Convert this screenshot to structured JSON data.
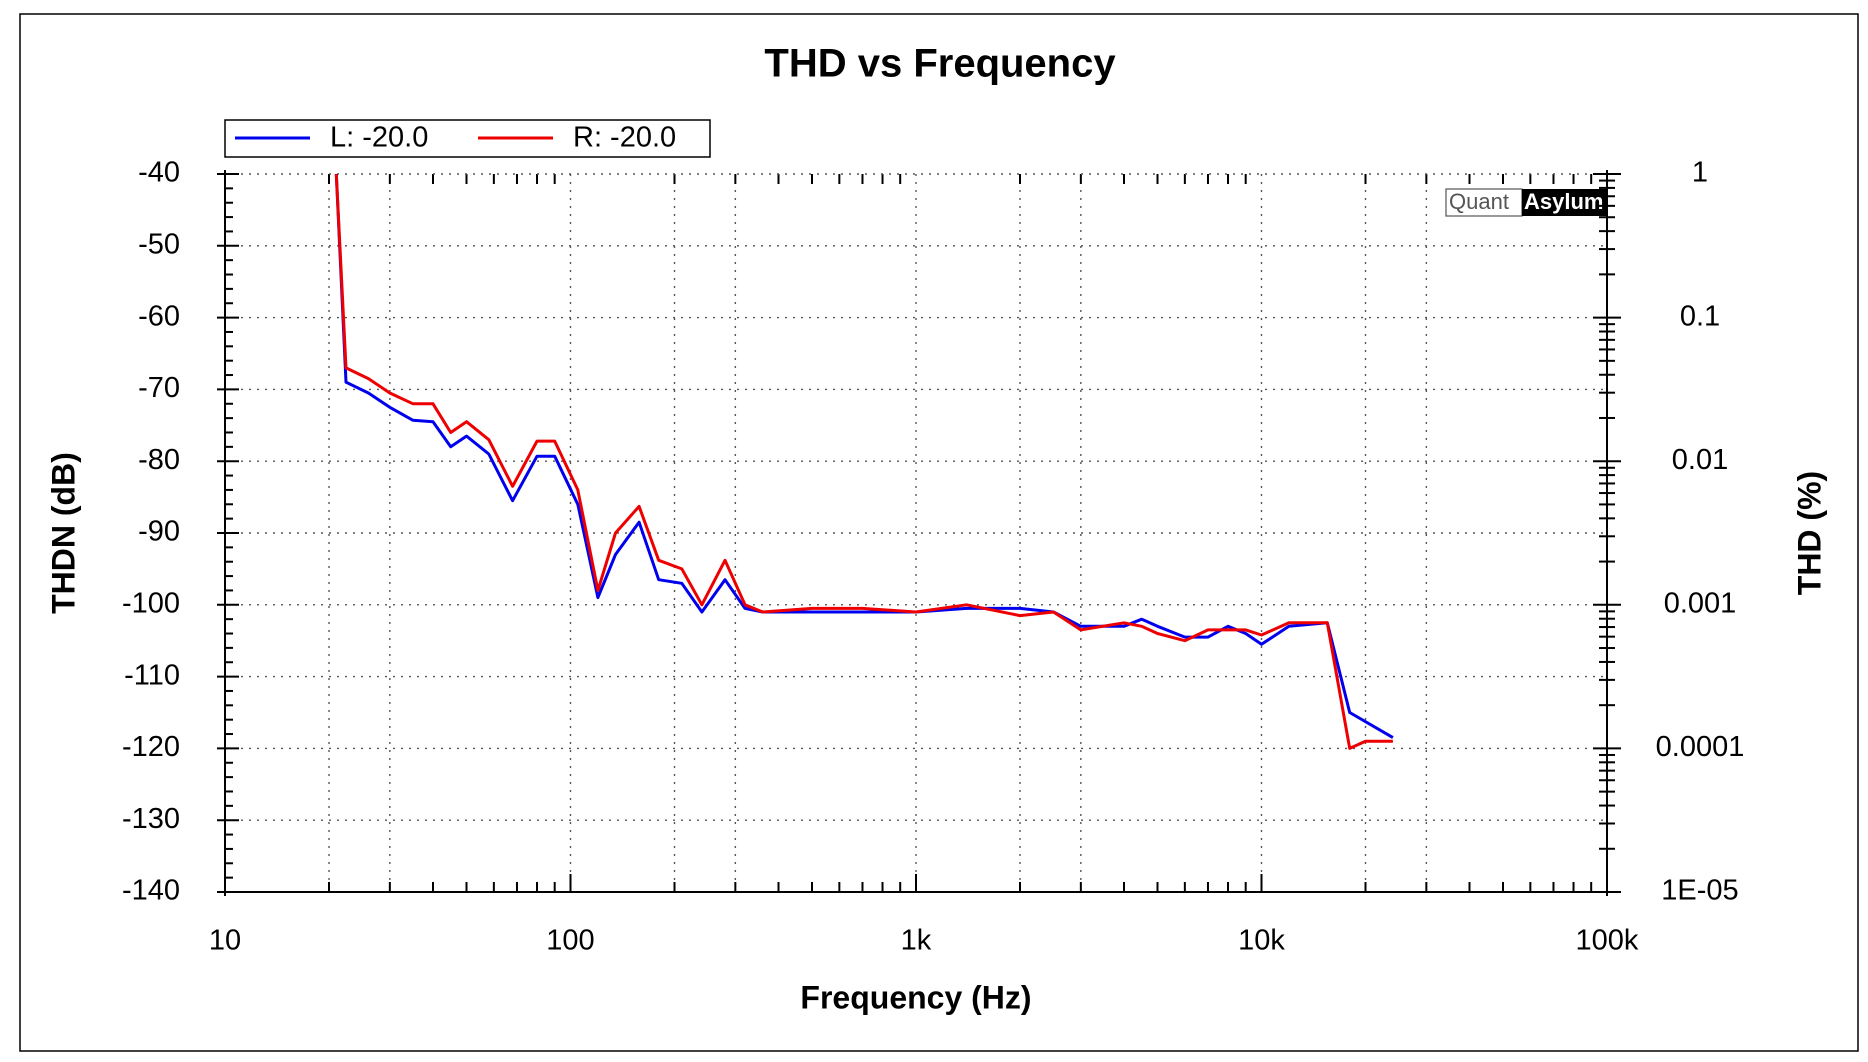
{
  "chart_data": {
    "type": "line",
    "title": "THD vs Frequency",
    "xlabel": "Frequency (Hz)",
    "ylabel": "THDN (dB)",
    "y2label": "THD (%)",
    "watermark": {
      "left": "Quant",
      "right": "Asylum"
    },
    "xscale": "log",
    "xlim": [
      10,
      100000
    ],
    "xticks": [
      10,
      100,
      {
        "value": 1000,
        "label": "1k"
      },
      {
        "value": 10000,
        "label": "10k"
      },
      {
        "value": 100000,
        "label": "100k"
      }
    ],
    "ylim": [
      -140,
      -40
    ],
    "yticks": [
      -40,
      -50,
      -60,
      -70,
      -80,
      -90,
      -100,
      -110,
      -120,
      -130,
      -140
    ],
    "y2scale": "log",
    "y2lim": [
      1e-05,
      1
    ],
    "y2ticks": [
      1,
      0.1,
      0.01,
      0.001,
      0.0001,
      {
        "value": 1e-05,
        "label": "1E-05"
      }
    ],
    "grid": true,
    "series": [
      {
        "name": "L: -20.0",
        "color": "#0000ee",
        "x": [
          21,
          22.4,
          26,
          30,
          35,
          40,
          45,
          50,
          58,
          68,
          80,
          90,
          105,
          120,
          135,
          158,
          180,
          210,
          240,
          280,
          320,
          360,
          500,
          700,
          1000,
          1400,
          2000,
          2500,
          3000,
          4000,
          4500,
          5000,
          6000,
          7000,
          8000,
          9000,
          10000,
          12000,
          15500,
          18000,
          24000
        ],
        "values": [
          -40,
          -69,
          -70.5,
          -72.5,
          -74.3,
          -74.5,
          -78,
          -76.5,
          -79,
          -85.5,
          -79.3,
          -79.3,
          -86,
          -99,
          -93,
          -88.5,
          -96.5,
          -97,
          -101,
          -96.5,
          -100.5,
          -101,
          -101,
          -101,
          -101,
          -100.5,
          -100.5,
          -101,
          -103,
          -103,
          -102,
          -103,
          -104.5,
          -104.5,
          -103,
          -104,
          -105.5,
          -103,
          -102.5,
          -115,
          -118.5
        ]
      },
      {
        "name": "R: -20.0",
        "color": "#ee0000",
        "x": [
          21,
          22.4,
          26,
          30,
          35,
          40,
          45,
          50,
          58,
          68,
          80,
          90,
          105,
          120,
          135,
          158,
          180,
          210,
          240,
          280,
          320,
          360,
          500,
          700,
          1000,
          1400,
          2000,
          2500,
          3000,
          4000,
          4500,
          5000,
          6000,
          7000,
          8000,
          9000,
          10000,
          12000,
          15500,
          18000,
          20000,
          24000
        ],
        "values": [
          -40,
          -67,
          -68.5,
          -70.5,
          -72,
          -72,
          -76,
          -74.5,
          -77,
          -83.5,
          -77.2,
          -77.2,
          -84,
          -98,
          -90,
          -86.3,
          -93.8,
          -95,
          -100,
          -93.8,
          -100,
          -101,
          -100.5,
          -100.5,
          -101,
          -100,
          -101.5,
          -101,
          -103.5,
          -102.5,
          -103,
          -104,
          -105,
          -103.5,
          -103.5,
          -103.5,
          -104.2,
          -102.5,
          -102.5,
          -120,
          -119,
          -119
        ]
      }
    ]
  }
}
